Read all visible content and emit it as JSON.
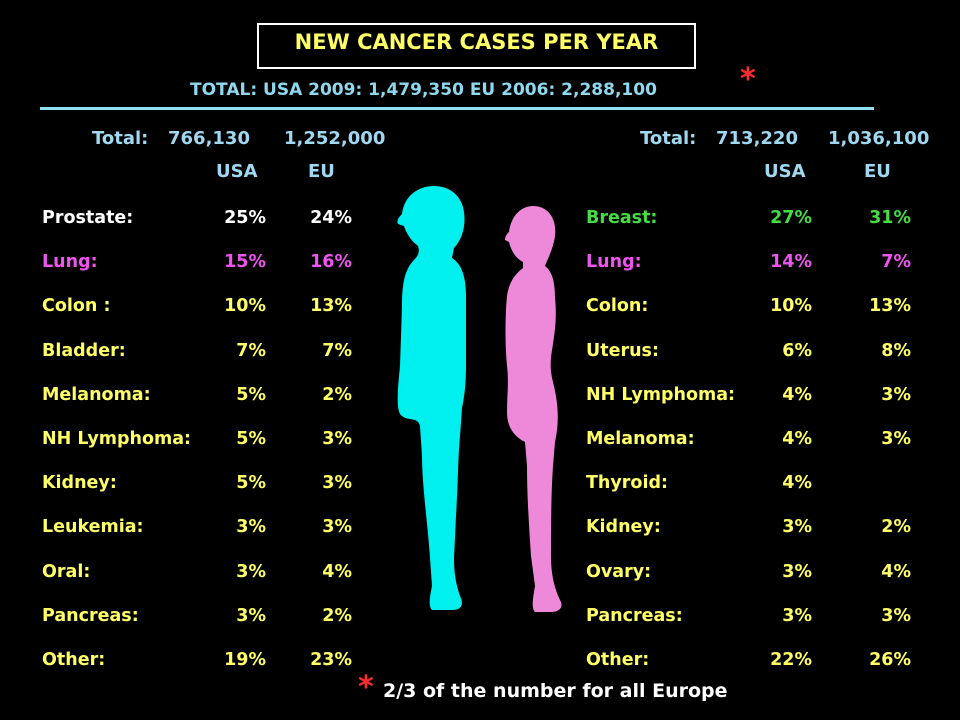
{
  "title": "NEW CANCER  CASES  PER YEAR",
  "subtitle": "TOTAL: USA 2009: 1,479,350    EU 2006: 2,288,100",
  "asterisk": "*",
  "footnote": "2/3 of the number for all Europe",
  "colors": {
    "background": "#000000",
    "title": "#ffff66",
    "header": "#9fd8f0",
    "male_silhouette": "#00f0f0",
    "female_silhouette": "#ee88d8",
    "asterisk": "#ff2a2a"
  },
  "men": {
    "total_label": "Total:",
    "total_usa": "766,130",
    "total_eu": "1,252,000",
    "col_usa": "USA",
    "col_eu": "EU",
    "rows": [
      {
        "name": "Prostate:",
        "usa": "25%",
        "eu": "24%",
        "color": "white"
      },
      {
        "name": "Lung:",
        "usa": "15%",
        "eu": "16%",
        "color": "pink"
      },
      {
        "name": "Colon :",
        "usa": "10%",
        "eu": "13%",
        "color": "yellow"
      },
      {
        "name": "Bladder:",
        "usa": "7%",
        "eu": "7%",
        "color": "yellow"
      },
      {
        "name": "Melanoma:",
        "usa": "5%",
        "eu": "2%",
        "color": "yellow"
      },
      {
        "name": "NH Lymphoma:",
        "usa": "5%",
        "eu": "3%",
        "color": "yellow"
      },
      {
        "name": "Kidney:",
        "usa": "5%",
        "eu": "3%",
        "color": "yellow"
      },
      {
        "name": "Leukemia:",
        "usa": "3%",
        "eu": "3%",
        "color": "yellow"
      },
      {
        "name": "Oral:",
        "usa": "3%",
        "eu": "4%",
        "color": "yellow"
      },
      {
        "name": "Pancreas:",
        "usa": "3%",
        "eu": "2%",
        "color": "yellow"
      },
      {
        "name": "Other:",
        "usa": "19%",
        "eu": "23%",
        "color": "yellow"
      }
    ]
  },
  "women": {
    "total_label": "Total:",
    "total_usa": "713,220",
    "total_eu": "1,036,100",
    "col_usa": "USA",
    "col_eu": "EU",
    "rows": [
      {
        "name": "Breast:",
        "usa": "27%",
        "eu": "31%",
        "color": "green"
      },
      {
        "name": "Lung:",
        "usa": "14%",
        "eu": "7%",
        "color": "pink"
      },
      {
        "name": "Colon:",
        "usa": "10%",
        "eu": "13%",
        "color": "yellow"
      },
      {
        "name": "Uterus:",
        "usa": "6%",
        "eu": "8%",
        "color": "yellow"
      },
      {
        "name": "NH Lymphoma:",
        "usa": "4%",
        "eu": "3%",
        "color": "yellow"
      },
      {
        "name": "Melanoma:",
        "usa": "4%",
        "eu": "3%",
        "color": "yellow"
      },
      {
        "name": "Thyroid:",
        "usa": "4%",
        "eu": "",
        "color": "yellow"
      },
      {
        "name": "Kidney:",
        "usa": "3%",
        "eu": "2%",
        "color": "yellow"
      },
      {
        "name": "Ovary:",
        "usa": "3%",
        "eu": "4%",
        "color": "yellow"
      },
      {
        "name": "Pancreas:",
        "usa": "3%",
        "eu": "3%",
        "color": "yellow"
      },
      {
        "name": "Other:",
        "usa": "22%",
        "eu": "26%",
        "color": "yellow"
      }
    ]
  }
}
